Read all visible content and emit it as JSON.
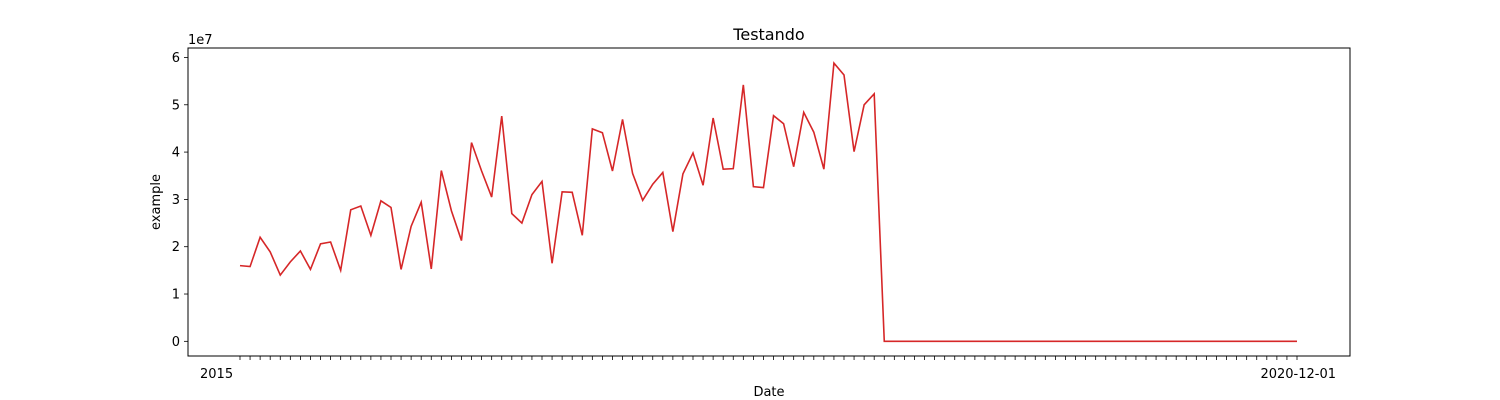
{
  "chart_data": {
    "type": "line",
    "title": "Testando",
    "xlabel": "Date",
    "ylabel": "example",
    "y_multiplier_label": "1e7",
    "y_tick_labels": [
      "0",
      "1",
      "2",
      "3",
      "4",
      "5",
      "6"
    ],
    "y_ticks": [
      0,
      10000000,
      20000000,
      30000000,
      40000000,
      50000000,
      60000000
    ],
    "ylim": [
      -3100000,
      62000000
    ],
    "grid": false,
    "line_color": "#d62728",
    "x_tick_label_start": "2015",
    "x_tick_label_end": "2020-12-01",
    "series": [
      {
        "values": [
          16000000,
          15800000,
          22000000,
          18900000,
          14000000,
          16800000,
          19100000,
          15200000,
          20600000,
          21000000,
          15000000,
          27800000,
          28600000,
          22400000,
          29700000,
          28300000,
          15200000,
          24300000,
          29400000,
          15300000,
          36100000,
          27600000,
          21300000,
          42000000,
          36000000,
          30500000,
          47600000,
          27000000,
          25000000,
          31000000,
          33800000,
          16500000,
          31600000,
          31500000,
          22400000,
          44900000,
          44100000,
          36000000,
          46900000,
          35500000,
          29800000,
          33200000,
          35700000,
          23200000,
          35400000,
          39800000,
          33000000,
          47200000,
          36400000,
          36500000,
          54200000,
          32700000,
          32500000,
          47700000,
          46000000,
          36900000,
          48400000,
          44200000,
          36400000,
          58800000,
          56300000,
          40100000,
          50000000,
          52300000,
          0,
          0,
          0,
          0,
          0,
          0,
          0,
          0,
          0,
          0,
          0,
          0,
          0,
          0,
          0,
          0,
          0,
          0,
          0,
          0,
          0,
          0,
          0,
          0,
          0,
          0,
          0,
          0,
          0,
          0,
          0,
          0,
          0,
          0,
          0,
          0,
          0,
          0,
          0,
          0,
          0,
          0
        ]
      }
    ]
  }
}
